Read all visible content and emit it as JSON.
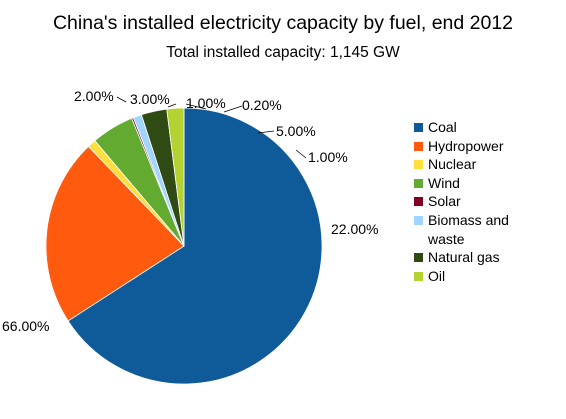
{
  "chart_data": {
    "type": "pie",
    "title": "China's installed electricity capacity by fuel, end 2012",
    "subtitle": "Total installed capacity: 1,145 GW",
    "legend_position": "right",
    "slices": [
      {
        "name": "Coal",
        "value": 66.0,
        "label": "66.00%",
        "color": "#0F5A99"
      },
      {
        "name": "Hydropower",
        "value": 22.0,
        "label": "22.00%",
        "color": "#FF5A0E"
      },
      {
        "name": "Nuclear",
        "value": 1.0,
        "label": "1.00%",
        "color": "#FFDF3C"
      },
      {
        "name": "Wind",
        "value": 5.0,
        "label": "5.00%",
        "color": "#63AA31"
      },
      {
        "name": "Solar",
        "value": 0.2,
        "label": "0.20%",
        "color": "#7F0020"
      },
      {
        "name": "Biomass and\nwaste",
        "value": 1.0,
        "label": "1.00%",
        "color": "#9FD5FF"
      },
      {
        "name": "Natural gas",
        "value": 3.0,
        "label": "3.00%",
        "color": "#304A13"
      },
      {
        "name": "Oil",
        "value": 2.0,
        "label": "2.00%",
        "color": "#B4D232"
      }
    ]
  }
}
